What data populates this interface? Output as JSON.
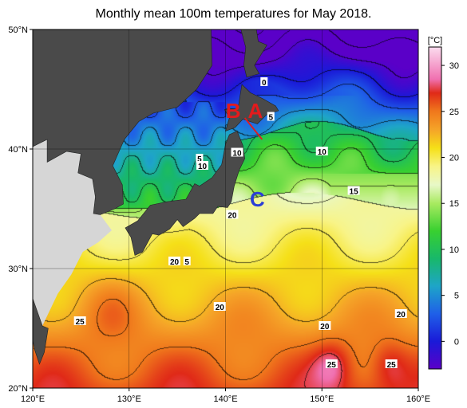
{
  "title": "Monthly mean 100m temperatures for May 2018.",
  "colors": {
    "land": "#4a4a4a",
    "land_light": "#d6d6d6",
    "marker_red": "#e41a1c",
    "marker_blue": "#2b3fd6"
  },
  "chart_data": {
    "type": "heatmap",
    "title": "Monthly mean 100m temperatures for May 2018.",
    "xlabel": "",
    "ylabel": "",
    "xlim": [
      120,
      160
    ],
    "ylim": [
      20,
      50
    ],
    "x_ticks": [
      {
        "value": 120,
        "label": "120°E"
      },
      {
        "value": 130,
        "label": "130°E"
      },
      {
        "value": 140,
        "label": "140°E"
      },
      {
        "value": 150,
        "label": "150°E"
      },
      {
        "value": 160,
        "label": "160°E"
      }
    ],
    "y_ticks": [
      {
        "value": 20,
        "label": "20°N"
      },
      {
        "value": 30,
        "label": "30°N"
      },
      {
        "value": 40,
        "label": "40°N"
      },
      {
        "value": 50,
        "label": "50°N"
      }
    ],
    "grid": true,
    "colorbar": {
      "unit": "[°C]",
      "min": -3,
      "max": 32,
      "ticks": [
        {
          "value": 0,
          "label": "0"
        },
        {
          "value": 5,
          "label": "5"
        },
        {
          "value": 10,
          "label": "10"
        },
        {
          "value": 15,
          "label": "15"
        },
        {
          "value": 20,
          "label": "20"
        },
        {
          "value": 25,
          "label": "25"
        },
        {
          "value": 30,
          "label": "30"
        }
      ],
      "stops": [
        {
          "value": -3,
          "color": "#5a00c8"
        },
        {
          "value": 0,
          "color": "#1a1ad8"
        },
        {
          "value": 3,
          "color": "#1f5fe8"
        },
        {
          "value": 6,
          "color": "#1ea5c8"
        },
        {
          "value": 9,
          "color": "#18b86a"
        },
        {
          "value": 12,
          "color": "#38d030"
        },
        {
          "value": 15,
          "color": "#a8ea60"
        },
        {
          "value": 17,
          "color": "#e8f8c8"
        },
        {
          "value": 19,
          "color": "#f8f488"
        },
        {
          "value": 21,
          "color": "#f5e018"
        },
        {
          "value": 23,
          "color": "#f5a428"
        },
        {
          "value": 25,
          "color": "#f0781c"
        },
        {
          "value": 27,
          "color": "#e02a18"
        },
        {
          "value": 28.5,
          "color": "#f070b0"
        },
        {
          "value": 32,
          "color": "#fbdcef"
        }
      ]
    },
    "contour_labels": [
      {
        "lon": 144.0,
        "lat": 45.6,
        "label": "0"
      },
      {
        "lon": 144.7,
        "lat": 42.7,
        "label": "5"
      },
      {
        "lon": 137.3,
        "lat": 39.2,
        "label": "5"
      },
      {
        "lon": 137.6,
        "lat": 38.6,
        "label": "10"
      },
      {
        "lon": 141.2,
        "lat": 39.7,
        "label": "10"
      },
      {
        "lon": 150.0,
        "lat": 39.8,
        "label": "10"
      },
      {
        "lon": 153.3,
        "lat": 36.5,
        "label": "15"
      },
      {
        "lon": 140.7,
        "lat": 34.5,
        "label": "20"
      },
      {
        "lon": 136.0,
        "lat": 30.6,
        "label": "5"
      },
      {
        "lon": 134.7,
        "lat": 30.6,
        "label": "20"
      },
      {
        "lon": 124.9,
        "lat": 25.6,
        "label": "25"
      },
      {
        "lon": 139.4,
        "lat": 26.8,
        "label": "20"
      },
      {
        "lon": 150.3,
        "lat": 25.2,
        "label": "20"
      },
      {
        "lon": 158.2,
        "lat": 26.2,
        "label": "20"
      },
      {
        "lon": 151.0,
        "lat": 22.0,
        "label": "25"
      },
      {
        "lon": 157.2,
        "lat": 22.0,
        "label": "25"
      }
    ],
    "markers": [
      {
        "label": "B",
        "lon": 140.8,
        "lat": 43.2,
        "color": "red"
      },
      {
        "label": "A",
        "lon": 143.1,
        "lat": 43.2,
        "color": "red"
      },
      {
        "label": "C",
        "lon": 143.3,
        "lat": 35.8,
        "color": "blue"
      }
    ]
  }
}
